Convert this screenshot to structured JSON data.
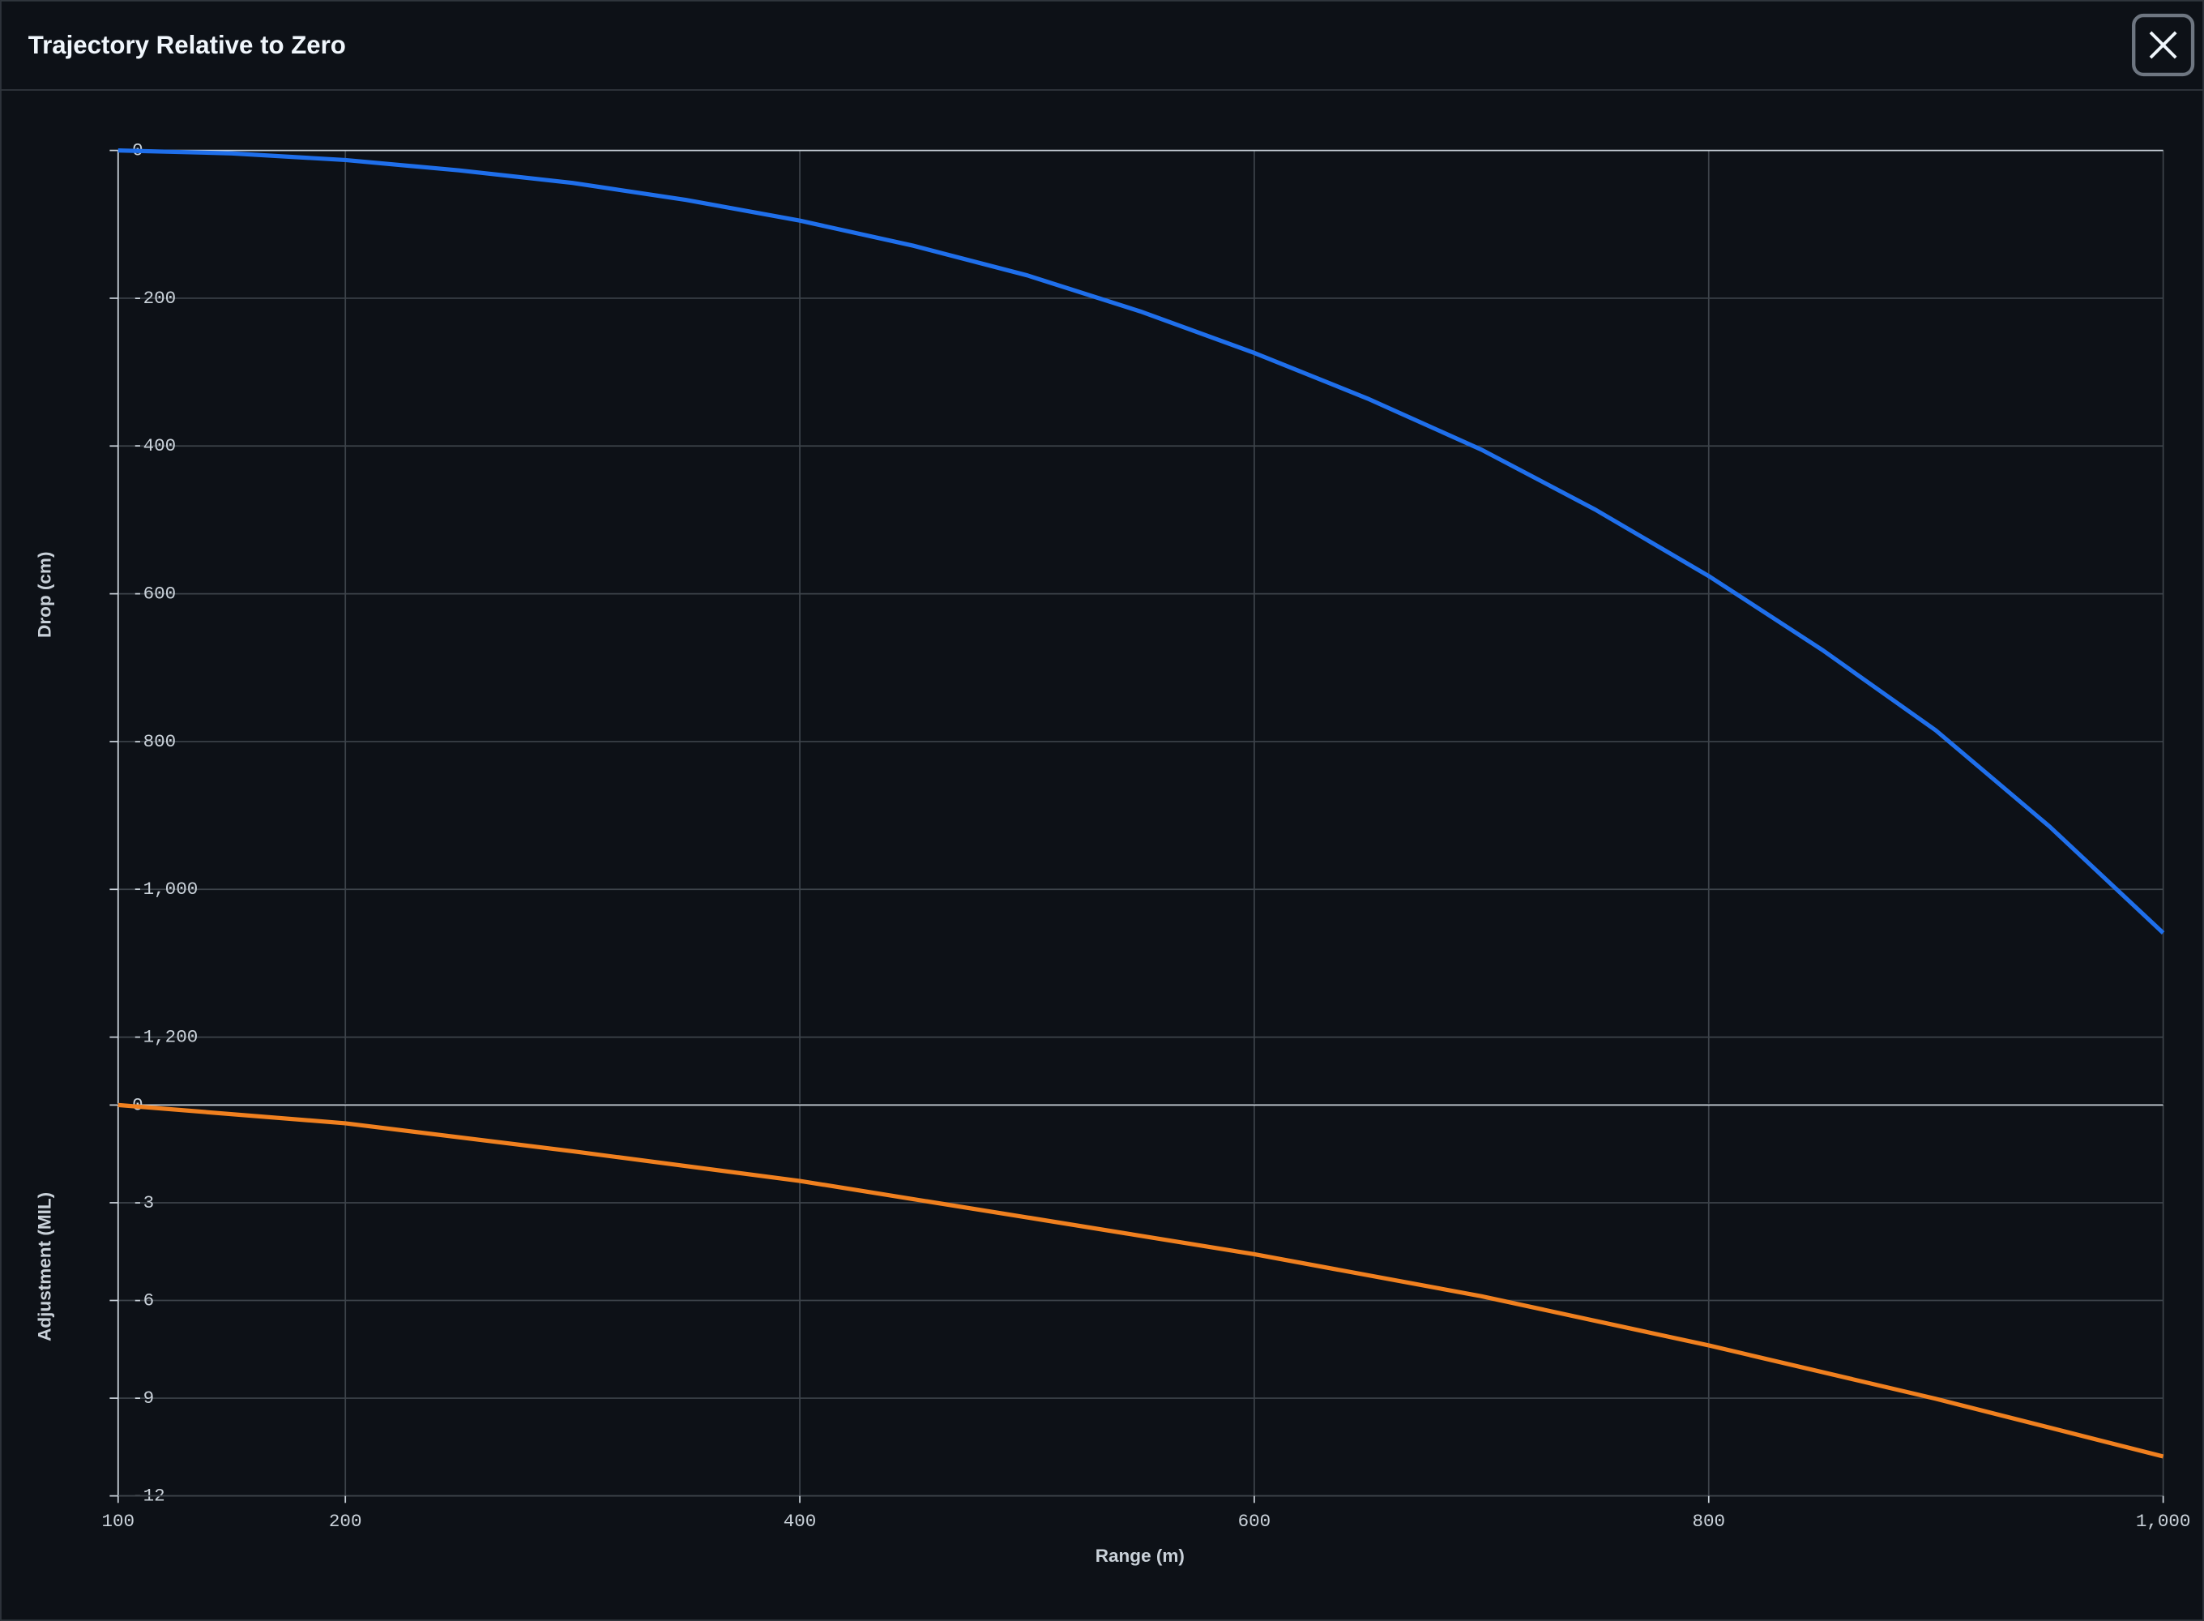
{
  "title": "Trajectory Relative to Zero",
  "chart_data": [
    {
      "type": "line",
      "y_label": "Drop (cm)",
      "color": "#1f6feb",
      "x": [
        100,
        150,
        200,
        250,
        300,
        350,
        400,
        450,
        500,
        550,
        600,
        650,
        700,
        750,
        800,
        850,
        900,
        950,
        1000
      ],
      "values": [
        0,
        -4,
        -13,
        -27,
        -44,
        -67,
        -95,
        -129,
        -169,
        -218,
        -274,
        -336,
        -405,
        -486,
        -576,
        -676,
        -785,
        -915,
        -1059
      ],
      "xlim": [
        100,
        1000
      ],
      "ylim": [
        -1290,
        0
      ],
      "yticks": [
        0,
        -200,
        -400,
        -600,
        -800,
        {
          "value": -1000,
          "label": "-1,000"
        },
        {
          "value": -1200,
          "label": "-1,200"
        }
      ],
      "grid": true
    },
    {
      "type": "line",
      "y_label": "Adjustment (MIL)",
      "x_label": "Range (m)",
      "color": "#f0801f",
      "x": [
        100,
        200,
        300,
        400,
        500,
        600,
        700,
        800,
        900,
        1000
      ],
      "values": [
        0,
        -0.56,
        -1.42,
        -2.33,
        -3.45,
        -4.58,
        -5.87,
        -7.38,
        -9.02,
        -10.79
      ],
      "xlim": [
        100,
        1000
      ],
      "ylim": [
        -12,
        0
      ],
      "xticks": [
        100,
        200,
        400,
        600,
        800,
        {
          "value": 1000,
          "label": "1,000"
        }
      ],
      "yticks": [
        0,
        -3,
        -6,
        -9,
        -12
      ],
      "grid": true
    }
  ]
}
